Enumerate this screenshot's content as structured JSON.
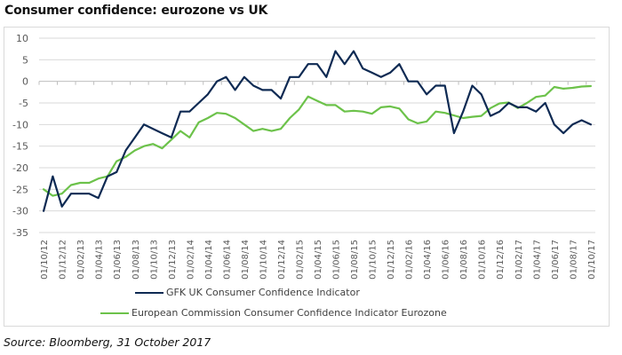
{
  "title": "Consumer confidence: eurozone vs UK",
  "source": "Source: Bloomberg, 31 October 2017",
  "chart_data": {
    "type": "line",
    "title": "Consumer confidence: eurozone vs UK",
    "xlabel": "",
    "ylabel": "",
    "ylim": [
      -35,
      10
    ],
    "yticks": [
      10,
      5,
      0,
      -5,
      -10,
      -15,
      -20,
      -25,
      -30,
      -35
    ],
    "grid": true,
    "legend_position": "bottom",
    "x": [
      "01/10/12",
      "01/11/12",
      "01/12/12",
      "01/01/13",
      "01/02/13",
      "01/03/13",
      "01/04/13",
      "01/05/13",
      "01/06/13",
      "01/07/13",
      "01/08/13",
      "01/09/13",
      "01/10/13",
      "01/11/13",
      "01/12/13",
      "01/01/14",
      "01/02/14",
      "01/03/14",
      "01/04/14",
      "01/05/14",
      "01/06/14",
      "01/07/14",
      "01/08/14",
      "01/09/14",
      "01/10/14",
      "01/11/14",
      "01/12/14",
      "01/01/15",
      "01/02/15",
      "01/03/15",
      "01/04/15",
      "01/05/15",
      "01/06/15",
      "01/07/15",
      "01/08/15",
      "01/09/15",
      "01/10/15",
      "01/11/15",
      "01/12/15",
      "01/01/16",
      "01/02/16",
      "01/03/16",
      "01/04/16",
      "01/05/16",
      "01/06/16",
      "01/07/16",
      "01/08/16",
      "01/09/16",
      "01/10/16",
      "01/11/16",
      "01/12/16",
      "01/01/17",
      "01/02/17",
      "01/03/17",
      "01/04/17",
      "01/05/17",
      "01/06/17",
      "01/07/17",
      "01/08/17",
      "01/09/17",
      "01/10/17"
    ],
    "xtick_labels": [
      "01/10/12",
      "01/12/12",
      "01/02/13",
      "01/04/13",
      "01/06/13",
      "01/08/13",
      "01/10/13",
      "01/12/13",
      "01/02/14",
      "01/04/14",
      "01/06/14",
      "01/08/14",
      "01/10/14",
      "01/12/14",
      "01/02/15",
      "01/04/15",
      "01/06/15",
      "01/08/15",
      "01/10/15",
      "01/12/15",
      "01/02/16",
      "01/04/16",
      "01/06/16",
      "01/08/16",
      "01/10/16",
      "01/12/16",
      "01/02/17",
      "01/04/17",
      "01/06/17",
      "01/08/17",
      "01/10/17"
    ],
    "series": [
      {
        "name": "GFK UK Consumer Confidence Indicator",
        "color": "#0e2a53",
        "values": [
          -30,
          -22,
          -29,
          -26,
          -26,
          -26,
          -27,
          -22,
          -21,
          -16,
          -13,
          -10,
          -11,
          -12,
          -13,
          -7,
          -7,
          -5,
          -3,
          0,
          1,
          -2,
          1,
          -1,
          -2,
          -2,
          -4,
          1,
          1,
          4,
          4,
          1,
          7,
          4,
          7,
          3,
          2,
          1,
          2,
          4,
          0,
          0,
          -3,
          -1,
          -1,
          -12,
          -7,
          -1,
          -3,
          -8,
          -7,
          -5,
          -6,
          -6,
          -7,
          -5,
          -10,
          -12,
          -10,
          -9,
          -10
        ]
      },
      {
        "name": "European Commission Consumer Confidence Indicator Eurozone",
        "color": "#6cc24a",
        "values": [
          -25,
          -26.5,
          -26,
          -24,
          -23.5,
          -23.5,
          -22.5,
          -22,
          -18.5,
          -17.5,
          -16,
          -15,
          -14.5,
          -15.5,
          -13.5,
          -11.5,
          -13,
          -9.5,
          -8.5,
          -7.3,
          -7.5,
          -8.5,
          -10,
          -11.5,
          -11,
          -11.5,
          -11,
          -8.5,
          -6.5,
          -3.5,
          -4.5,
          -5.5,
          -5.5,
          -7,
          -6.8,
          -7,
          -7.5,
          -6,
          -5.8,
          -6.3,
          -8.8,
          -9.7,
          -9.3,
          -7,
          -7.3,
          -7.9,
          -8.5,
          -8.2,
          -8,
          -6.2,
          -5.1,
          -4.9,
          -6.2,
          -5,
          -3.6,
          -3.3,
          -1.3,
          -1.7,
          -1.5,
          -1.2,
          -1.1
        ]
      }
    ]
  }
}
